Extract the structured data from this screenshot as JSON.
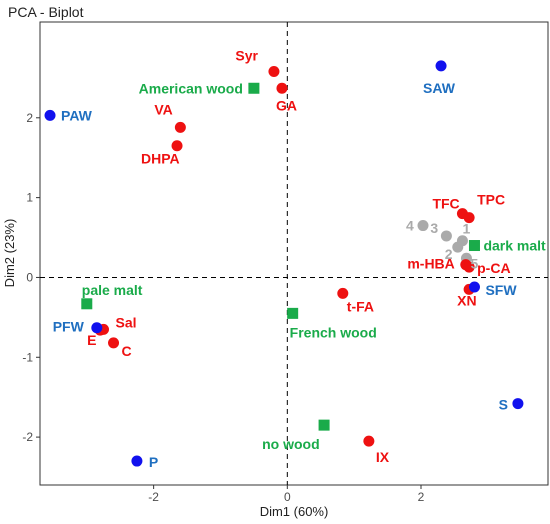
{
  "chart_data": {
    "type": "scatter",
    "title": "PCA - Biplot",
    "xlabel": "Dim1 (60%)",
    "ylabel": "Dim2 (23%)",
    "xlim": [
      -3.7,
      3.9
    ],
    "ylim": [
      -2.6,
      3.2
    ],
    "xticks": [
      -2,
      0,
      2
    ],
    "yticks": [
      -2,
      -1,
      0,
      1,
      2
    ],
    "zero_lines": true,
    "grid": false,
    "colors": {
      "red": "#ee1111",
      "blue": "#1111ee",
      "blue_label": "#1f6fc0",
      "green": "#1aab4a",
      "grey": "#aaaaaa"
    },
    "series": [
      {
        "group": "red-circles",
        "marker": "circle",
        "color": "#ee1111",
        "points": [
          {
            "label": "Syr",
            "x": -0.2,
            "y": 2.58
          },
          {
            "label": "GA",
            "x": -0.08,
            "y": 2.37
          },
          {
            "label": "VA",
            "x": -1.6,
            "y": 1.88
          },
          {
            "label": "DHPA",
            "x": -1.65,
            "y": 1.65
          },
          {
            "label": "TFC",
            "x": 2.62,
            "y": 0.8
          },
          {
            "label": "TPC",
            "x": 2.72,
            "y": 0.75
          },
          {
            "label": "m-HBA",
            "x": 2.67,
            "y": 0.16
          },
          {
            "label": "p-CA",
            "x": 2.72,
            "y": 0.13
          },
          {
            "label": "XN",
            "x": 2.72,
            "y": -0.15
          },
          {
            "label": "t-FA",
            "x": 0.83,
            "y": -0.2
          },
          {
            "label": "Sal",
            "x": -2.75,
            "y": -0.65
          },
          {
            "label": "E",
            "x": -2.8,
            "y": -0.66
          },
          {
            "label": "C",
            "x": -2.6,
            "y": -0.82
          },
          {
            "label": "IX",
            "x": 1.22,
            "y": -2.05
          }
        ]
      },
      {
        "group": "blue-circles",
        "marker": "circle",
        "color": "#1111ee",
        "points": [
          {
            "label": "SAW",
            "x": 2.3,
            "y": 2.65
          },
          {
            "label": "PAW",
            "x": -3.55,
            "y": 2.03
          },
          {
            "label": "SFW",
            "x": 2.8,
            "y": -0.12
          },
          {
            "label": "PFW",
            "x": -2.85,
            "y": -0.63
          },
          {
            "label": "S",
            "x": 3.45,
            "y": -1.58
          },
          {
            "label": "P",
            "x": -2.25,
            "y": -2.3
          }
        ]
      },
      {
        "group": "green-squares",
        "marker": "square",
        "color": "#1aab4a",
        "points": [
          {
            "label": "American wood",
            "x": -0.5,
            "y": 2.37
          },
          {
            "label": "dark malt",
            "x": 2.8,
            "y": 0.4
          },
          {
            "label": "pale malt",
            "x": -3.0,
            "y": -0.33
          },
          {
            "label": "French wood",
            "x": 0.08,
            "y": -0.45
          },
          {
            "label": "no wood",
            "x": 0.55,
            "y": -1.85
          }
        ]
      },
      {
        "group": "grey-circles",
        "marker": "circle",
        "color": "#aaaaaa",
        "points": [
          {
            "label": "1",
            "x": 2.62,
            "y": 0.46
          },
          {
            "label": "2",
            "x": 2.55,
            "y": 0.38
          },
          {
            "label": "3",
            "x": 2.38,
            "y": 0.52
          },
          {
            "label": "4",
            "x": 2.03,
            "y": 0.65
          },
          {
            "label": "5",
            "x": 2.68,
            "y": 0.24
          }
        ]
      }
    ]
  }
}
